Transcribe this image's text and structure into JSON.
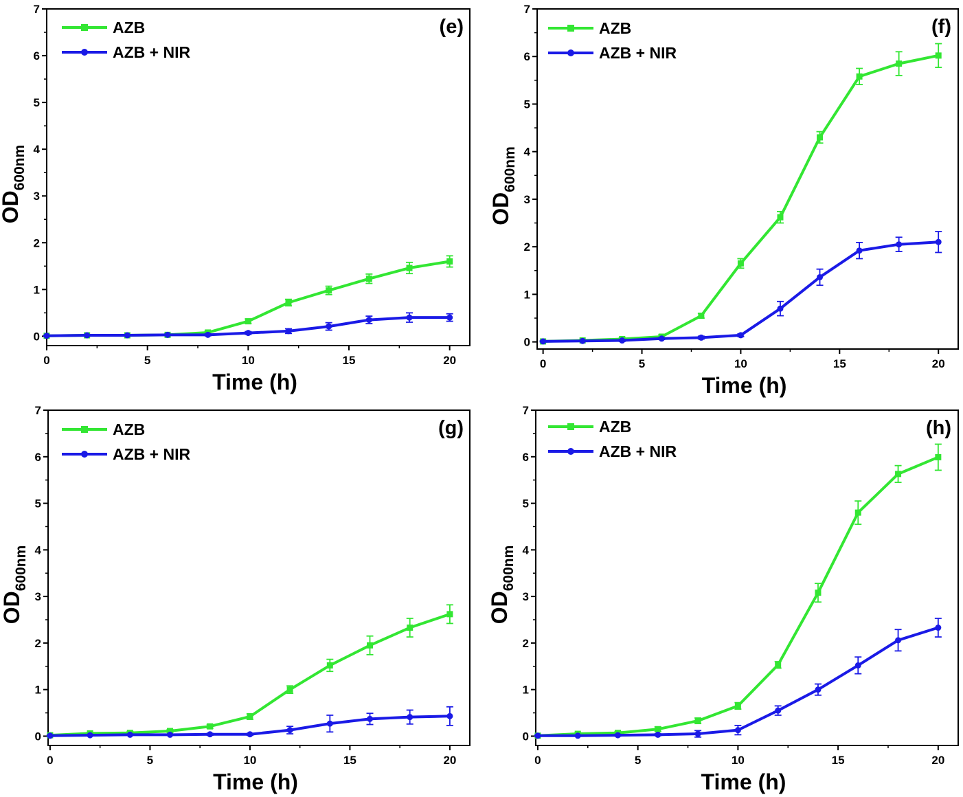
{
  "chart_data": [
    {
      "type": "line",
      "panel_label": "(e)",
      "xlabel": "Time (h)",
      "ylabel_main": "OD",
      "ylabel_sub": "600nm",
      "xlim": [
        0,
        21
      ],
      "ylim": [
        -0.2,
        7
      ],
      "xticks": [
        0,
        5,
        10,
        15,
        20
      ],
      "yticks": [
        0,
        1,
        2,
        3,
        4,
        5,
        6,
        7
      ],
      "legend_position": "top-left",
      "x": [
        0,
        2,
        4,
        6,
        8,
        10,
        12,
        14,
        16,
        18,
        20
      ],
      "series": [
        {
          "name": "AZB",
          "color": "#33e633",
          "marker": "square",
          "values": [
            0.01,
            0.02,
            0.02,
            0.03,
            0.08,
            0.32,
            0.72,
            0.98,
            1.23,
            1.46,
            1.6
          ],
          "errors": [
            0.01,
            0.01,
            0.01,
            0.02,
            0.03,
            0.05,
            0.07,
            0.09,
            0.1,
            0.12,
            0.12
          ]
        },
        {
          "name": "AZB + NIR",
          "color": "#1a1ae6",
          "marker": "circle",
          "values": [
            0.01,
            0.02,
            0.02,
            0.03,
            0.03,
            0.07,
            0.11,
            0.21,
            0.35,
            0.4,
            0.4
          ],
          "errors": [
            0.01,
            0.01,
            0.01,
            0.01,
            0.02,
            0.03,
            0.05,
            0.08,
            0.08,
            0.1,
            0.08
          ]
        }
      ]
    },
    {
      "type": "line",
      "panel_label": "(f)",
      "xlabel": "Time (h)",
      "ylabel_main": "OD",
      "ylabel_sub": "600nm",
      "xlim": [
        -0.3,
        21
      ],
      "ylim": [
        -0.15,
        7
      ],
      "xticks": [
        0,
        5,
        10,
        15,
        20
      ],
      "yticks": [
        0,
        1,
        2,
        3,
        4,
        5,
        6,
        7
      ],
      "legend_position": "top-left",
      "x": [
        0,
        2,
        4,
        6,
        8,
        10,
        12,
        14,
        16,
        18,
        20
      ],
      "series": [
        {
          "name": "AZB",
          "color": "#33e633",
          "marker": "square",
          "values": [
            0.01,
            0.03,
            0.06,
            0.11,
            0.55,
            1.65,
            2.62,
            4.3,
            5.58,
            5.85,
            6.02
          ],
          "errors": [
            0.01,
            0.02,
            0.03,
            0.04,
            0.05,
            0.1,
            0.12,
            0.12,
            0.17,
            0.25,
            0.25
          ]
        },
        {
          "name": "AZB + NIR",
          "color": "#1a1ae6",
          "marker": "circle",
          "values": [
            0.01,
            0.02,
            0.03,
            0.07,
            0.09,
            0.14,
            0.7,
            1.36,
            1.92,
            2.05,
            2.1
          ],
          "errors": [
            0.01,
            0.01,
            0.02,
            0.02,
            0.03,
            0.03,
            0.15,
            0.17,
            0.17,
            0.15,
            0.22
          ]
        }
      ]
    },
    {
      "type": "line",
      "panel_label": "(g)",
      "xlabel": "Time (h)",
      "ylabel_main": "OD",
      "ylabel_sub": "600nm",
      "xlim": [
        -0.1,
        21
      ],
      "ylim": [
        -0.2,
        7
      ],
      "xticks": [
        0,
        5,
        10,
        15,
        20
      ],
      "yticks": [
        0,
        1,
        2,
        3,
        4,
        5,
        6,
        7
      ],
      "legend_position": "top-left",
      "x": [
        0,
        2,
        4,
        6,
        8,
        10,
        12,
        14,
        16,
        18,
        20
      ],
      "series": [
        {
          "name": "AZB",
          "color": "#33e633",
          "marker": "square",
          "values": [
            0.02,
            0.06,
            0.07,
            0.11,
            0.21,
            0.42,
            1.0,
            1.52,
            1.95,
            2.33,
            2.62
          ],
          "errors": [
            0.01,
            0.02,
            0.03,
            0.03,
            0.04,
            0.06,
            0.08,
            0.13,
            0.2,
            0.2,
            0.2
          ]
        },
        {
          "name": "AZB + NIR",
          "color": "#1a1ae6",
          "marker": "circle",
          "values": [
            0.01,
            0.02,
            0.03,
            0.03,
            0.04,
            0.04,
            0.13,
            0.27,
            0.37,
            0.41,
            0.43
          ],
          "errors": [
            0.01,
            0.01,
            0.01,
            0.01,
            0.02,
            0.02,
            0.08,
            0.18,
            0.12,
            0.15,
            0.2
          ]
        }
      ]
    },
    {
      "type": "line",
      "panel_label": "(h)",
      "xlabel": "Time (h)",
      "ylabel_main": "OD",
      "ylabel_sub": "600nm",
      "xlim": [
        -0.1,
        21
      ],
      "ylim": [
        -0.2,
        7
      ],
      "xticks": [
        0,
        5,
        10,
        15,
        20
      ],
      "yticks": [
        0,
        1,
        2,
        3,
        4,
        5,
        6,
        7
      ],
      "legend_position": "top-left",
      "x": [
        0,
        2,
        4,
        6,
        8,
        10,
        12,
        14,
        16,
        18,
        20
      ],
      "series": [
        {
          "name": "AZB",
          "color": "#33e633",
          "marker": "square",
          "values": [
            0.01,
            0.05,
            0.07,
            0.15,
            0.33,
            0.65,
            1.53,
            3.08,
            4.8,
            5.63,
            5.99
          ],
          "errors": [
            0.01,
            0.02,
            0.03,
            0.05,
            0.06,
            0.07,
            0.07,
            0.2,
            0.25,
            0.18,
            0.28
          ]
        },
        {
          "name": "AZB + NIR",
          "color": "#1a1ae6",
          "marker": "circle",
          "values": [
            0.01,
            0.01,
            0.02,
            0.03,
            0.05,
            0.13,
            0.55,
            1.0,
            1.52,
            2.06,
            2.33
          ],
          "errors": [
            0.01,
            0.01,
            0.02,
            0.02,
            0.07,
            0.1,
            0.1,
            0.12,
            0.18,
            0.23,
            0.2
          ]
        }
      ]
    }
  ]
}
